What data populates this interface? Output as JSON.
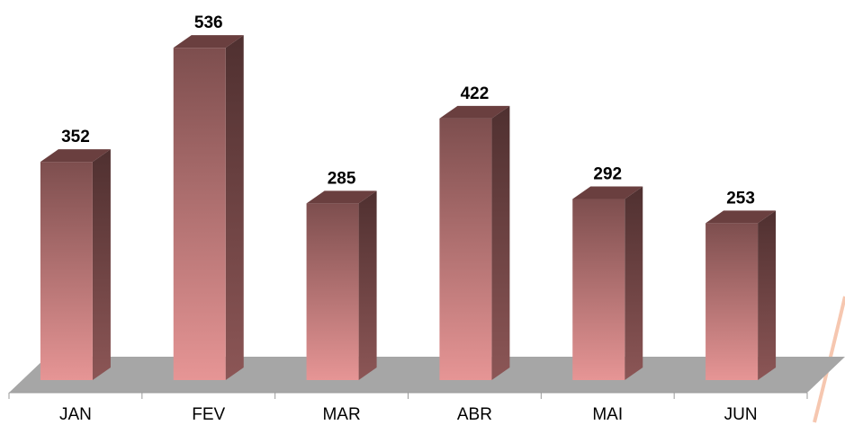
{
  "chart_data": {
    "type": "bar",
    "categories": [
      "JAN",
      "FEV",
      "MAR",
      "ABR",
      "MAI",
      "JUN"
    ],
    "values": [
      352,
      536,
      285,
      422,
      292,
      253
    ],
    "color": "#c98080"
  }
}
